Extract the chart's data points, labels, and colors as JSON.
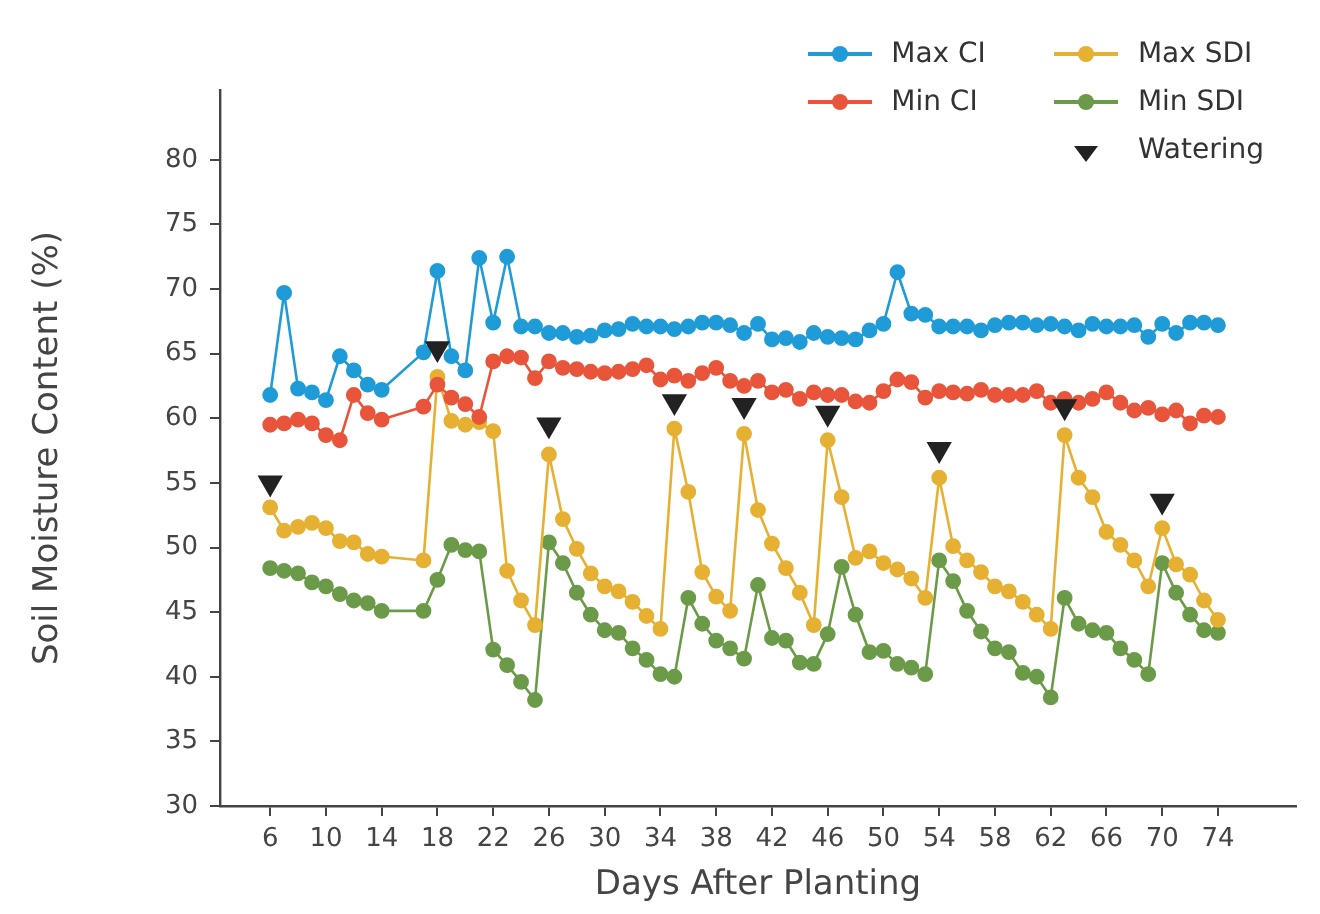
{
  "chart_data": {
    "type": "line",
    "xlabel": "Days After Planting",
    "ylabel": "Soil Moisture Content (%)",
    "x": [
      6,
      7,
      8,
      9,
      10,
      11,
      12,
      13,
      14,
      17,
      18,
      19,
      20,
      21,
      22,
      23,
      24,
      25,
      26,
      27,
      28,
      29,
      30,
      31,
      32,
      33,
      34,
      35,
      36,
      37,
      38,
      39,
      40,
      41,
      42,
      43,
      44,
      45,
      46,
      47,
      48,
      49,
      50,
      51,
      52,
      53,
      54,
      55,
      56,
      57,
      58,
      59,
      60,
      61,
      62,
      63,
      64,
      65,
      66,
      67,
      68,
      69,
      70,
      71,
      72,
      73,
      74
    ],
    "xlim": [
      2.4,
      79.6
    ],
    "xticks": [
      6,
      10,
      14,
      18,
      22,
      26,
      30,
      34,
      38,
      42,
      46,
      50,
      54,
      58,
      62,
      66,
      70,
      74
    ],
    "ylim": [
      30,
      85.4
    ],
    "yticks": [
      30,
      35,
      40,
      45,
      50,
      55,
      60,
      65,
      70,
      75,
      80
    ],
    "grid": false,
    "legend": "top right",
    "marker": "circle",
    "line_style": "solid",
    "series": [
      {
        "name": "Max CI",
        "color": "#1f9bd7",
        "values": [
          61.8,
          69.7,
          62.3,
          62,
          61.4,
          64.8,
          63.7,
          62.6,
          62.2,
          65.1,
          71.4,
          64.8,
          63.7,
          72.4,
          67.4,
          72.5,
          67.1,
          67.1,
          66.6,
          66.6,
          66.3,
          66.4,
          66.8,
          66.9,
          67.3,
          67.1,
          67.1,
          66.9,
          67.1,
          67.4,
          67.4,
          67.2,
          66.6,
          67.3,
          66.1,
          66.2,
          65.9,
          66.6,
          66.3,
          66.2,
          66.1,
          66.8,
          67.3,
          71.3,
          68.1,
          68,
          67.1,
          67.1,
          67.1,
          66.8,
          67.2,
          67.4,
          67.4,
          67.2,
          67.3,
          67.1,
          66.8,
          67.3,
          67.1,
          67.1,
          67.2,
          66.3,
          67.3,
          66.6,
          67.4,
          67.4,
          67.2
        ]
      },
      {
        "name": "Min CI",
        "color": "#e8553a",
        "values": [
          59.5,
          59.6,
          59.9,
          59.6,
          58.7,
          58.3,
          61.8,
          60.4,
          59.9,
          60.9,
          62.6,
          61.6,
          61.1,
          60.1,
          64.4,
          64.8,
          64.7,
          63.1,
          64.4,
          63.9,
          63.8,
          63.6,
          63.5,
          63.6,
          63.8,
          64.1,
          63,
          63.3,
          62.9,
          63.5,
          63.9,
          62.9,
          62.5,
          62.9,
          62,
          62.2,
          61.5,
          62,
          61.8,
          61.8,
          61.3,
          61.2,
          62.1,
          63,
          62.8,
          61.6,
          62.1,
          62,
          61.9,
          62.2,
          61.8,
          61.8,
          61.8,
          62.1,
          61.2,
          61.5,
          61.2,
          61.5,
          62,
          61.2,
          60.6,
          60.8,
          60.3,
          60.6,
          59.6,
          60.2,
          60.1
        ]
      },
      {
        "name": "Max SDI",
        "color": "#e6b032",
        "values": [
          53.1,
          51.3,
          51.6,
          51.9,
          51.5,
          50.5,
          50.4,
          49.5,
          49.3,
          49,
          63.2,
          59.8,
          59.5,
          59.7,
          59,
          48.2,
          45.9,
          44,
          57.2,
          52.2,
          49.9,
          48,
          47,
          46.6,
          45.8,
          44.7,
          43.7,
          59.2,
          54.3,
          48.1,
          46.2,
          45.1,
          58.8,
          52.9,
          50.3,
          48.4,
          46.5,
          44,
          58.3,
          53.9,
          49.2,
          49.7,
          48.8,
          48.3,
          47.6,
          46.1,
          55.4,
          50.1,
          49,
          48.1,
          47,
          46.6,
          45.8,
          44.8,
          43.7,
          58.7,
          55.4,
          53.9,
          51.2,
          50.2,
          49,
          47,
          51.5,
          48.7,
          47.9,
          45.9,
          44.4
        ]
      },
      {
        "name": "Min SDI",
        "color": "#6b9a48",
        "values": [
          48.4,
          48.2,
          48,
          47.3,
          47,
          46.4,
          45.9,
          45.7,
          45.1,
          45.1,
          47.5,
          50.2,
          49.8,
          49.7,
          42.1,
          40.9,
          39.6,
          38.2,
          50.4,
          48.8,
          46.5,
          44.8,
          43.6,
          43.4,
          42.2,
          41.3,
          40.2,
          40,
          46.1,
          44.1,
          42.8,
          42.2,
          41.4,
          47.1,
          43,
          42.8,
          41.1,
          41,
          43.3,
          48.5,
          44.8,
          41.9,
          42,
          41,
          40.7,
          40.2,
          49,
          47.4,
          45.1,
          43.5,
          42.2,
          41.9,
          40.3,
          40,
          38.4,
          46.1,
          44.1,
          43.6,
          43.4,
          42.2,
          41.3,
          40.2,
          48.8,
          46.5,
          44.8,
          43.6,
          43.4
        ]
      },
      {
        "name": "Watering",
        "type": "scatter",
        "marker": "triangle",
        "color": "#222222",
        "x": [
          6,
          18,
          26,
          35,
          40,
          46,
          54,
          63,
          70
        ],
        "values": [
          55,
          65.4,
          59.5,
          61.3,
          61,
          60.4,
          57.6,
          60.9,
          53.6
        ]
      }
    ]
  }
}
